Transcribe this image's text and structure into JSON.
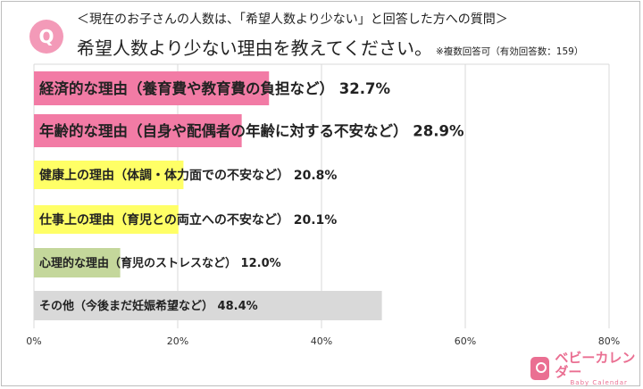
{
  "header": {
    "q_badge": "Q",
    "subtitle": "＜現在のお子さんの人数は、「希望人数より少ない」と回答した方への質問＞",
    "title": "希望人数より少ない理由を教えてください。",
    "note": "※複数回答可（有効回答数：159）"
  },
  "chart_data": {
    "type": "bar",
    "orientation": "horizontal",
    "categories": [
      "経済的な理由（養育費や教育費の負担など）",
      "年齢的な理由（自身や配偶者の年齢に対する不安など）",
      "健康上の理由（体調・体力面での不安など）",
      "仕事上の理由（育児との両立への不安など）",
      "心理的な理由（育児のストレスなど）",
      "その他（今後まだ妊娠希望など）"
    ],
    "values": [
      32.7,
      28.9,
      20.8,
      20.1,
      12.0,
      48.4
    ],
    "data_labels": [
      "32.7%",
      "28.9%",
      "20.8%",
      "20.1%",
      "12.0%",
      "48.4%"
    ],
    "colors": [
      "#f27ba5",
      "#f27ba5",
      "#ffff66",
      "#ffff66",
      "#c4d79b",
      "#d9d9d9"
    ],
    "xlim": [
      0,
      80
    ],
    "xticks": [
      "0%",
      "20%",
      "40%",
      "60%",
      "80%"
    ],
    "grid": true
  },
  "logo": {
    "main": "ベビーカレンダー",
    "en": "Baby Calendar"
  }
}
